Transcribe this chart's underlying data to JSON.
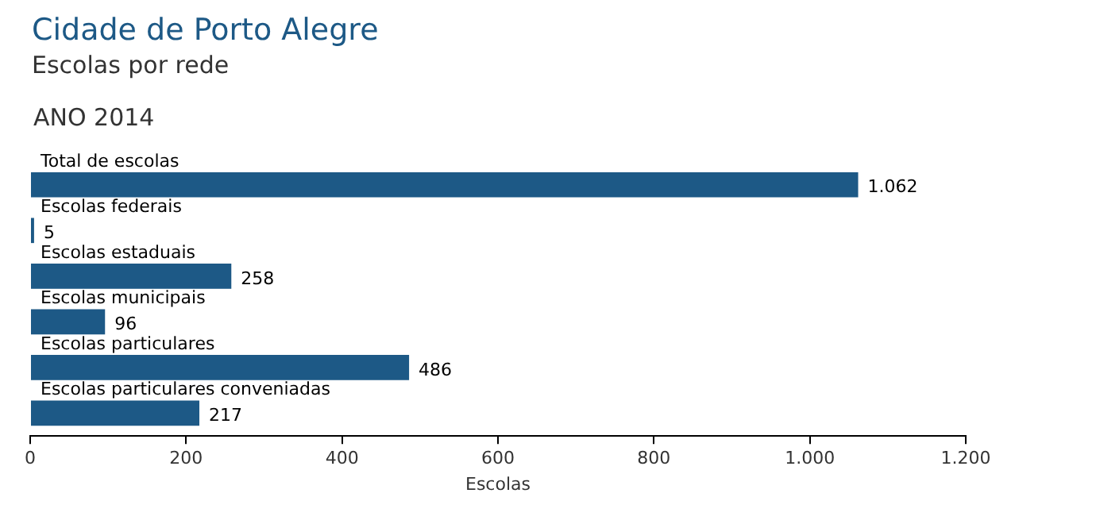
{
  "chart_data": {
    "type": "bar",
    "orientation": "horizontal",
    "title": "Cidade de Porto Alegre",
    "subtitle": "Escolas por rede",
    "annotations": [
      "ANO 2014"
    ],
    "categories": [
      "Total de escolas",
      "Escolas federais",
      "Escolas estaduais",
      "Escolas municipais",
      "Escolas particulares",
      "Escolas particulares conveniadas"
    ],
    "values": [
      1062,
      5,
      258,
      96,
      486,
      217
    ],
    "value_labels": [
      "1.062",
      "5",
      "258",
      "96",
      "486",
      "217"
    ],
    "color": "#1d5986",
    "xlabel": "Escolas",
    "xlim": [
      0,
      1200
    ],
    "xticks": [
      0,
      200,
      400,
      600,
      800,
      {
        "value": 1000,
        "label": "1.000"
      },
      {
        "value": 1200,
        "label": "1.200"
      }
    ],
    "grid": false
  }
}
